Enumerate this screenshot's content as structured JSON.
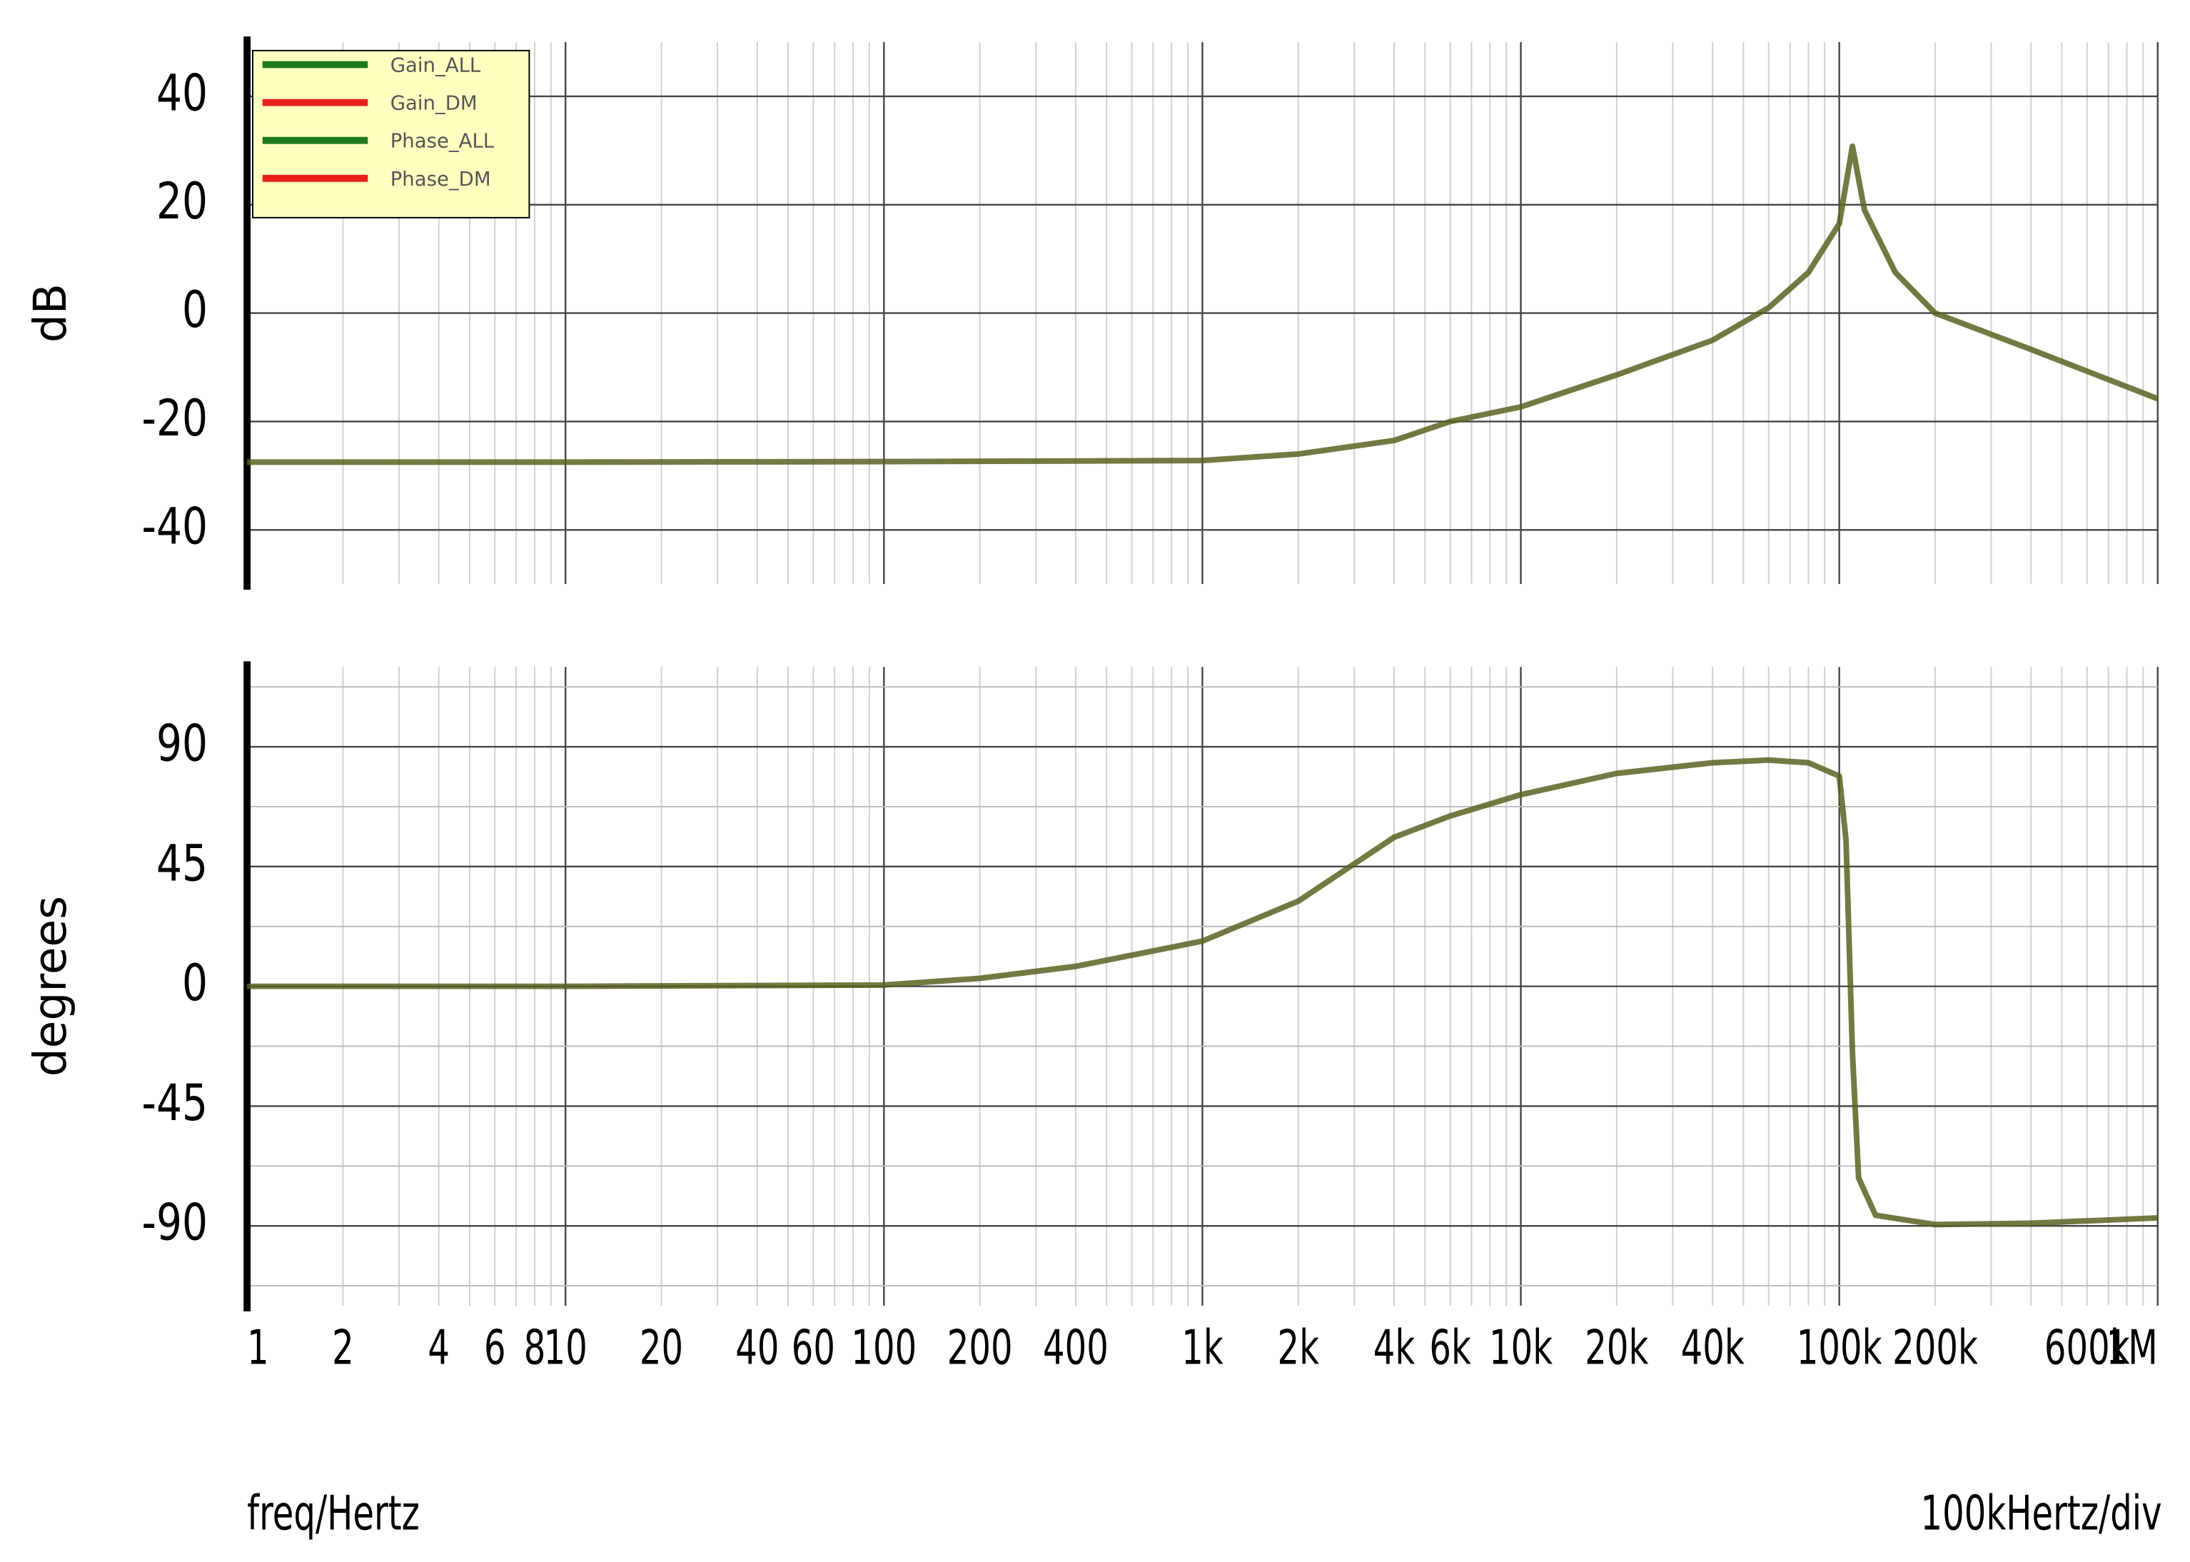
{
  "chart_data": [
    {
      "type": "line",
      "y_label": "dB",
      "log_x": true,
      "grid": true,
      "xlim": [
        1,
        1000000
      ],
      "ylim": [
        -50,
        50
      ],
      "yticks": [
        -40,
        -20,
        0,
        20,
        40
      ],
      "xgrid": [
        1,
        2,
        3,
        4,
        5,
        6,
        7,
        8,
        9,
        10,
        20,
        30,
        40,
        50,
        60,
        70,
        80,
        90,
        100,
        200,
        300,
        400,
        500,
        600,
        700,
        800,
        900,
        1000,
        2000,
        3000,
        4000,
        5000,
        6000,
        7000,
        8000,
        9000,
        10000,
        20000,
        30000,
        40000,
        50000,
        60000,
        70000,
        80000,
        90000,
        100000,
        200000,
        300000,
        400000,
        500000,
        600000,
        700000,
        800000,
        900000,
        1000000
      ],
      "x": [
        1,
        10,
        100,
        1000,
        2000,
        4000,
        6000,
        10000,
        20000,
        40000,
        60000,
        80000,
        100000,
        110000,
        120000,
        150000,
        200000,
        400000,
        1000000
      ],
      "series": [
        {
          "name": "Gain_DM",
          "color": "#e8201c",
          "values": [
            -27.5,
            -27.5,
            -27.4,
            -27.2,
            -26,
            -23.5,
            -20,
            -17.3,
            -11.4,
            -5,
            1,
            7.5,
            16.5,
            30.8,
            19,
            7.5,
            0,
            -6.7,
            -15.8
          ]
        },
        {
          "name": "Gain_ALL",
          "color": "#1f7a1f",
          "values": [
            -27.5,
            -27.5,
            -27.4,
            -27.2,
            -26,
            -23.5,
            -20,
            -17.3,
            -11.4,
            -5,
            1,
            7.5,
            16.5,
            30.8,
            19,
            7.5,
            0,
            -6.7,
            -15.8
          ]
        }
      ]
    },
    {
      "type": "line",
      "y_label": "degrees",
      "log_x": true,
      "grid": true,
      "xlim": [
        1,
        1000000
      ],
      "ylim": [
        -120,
        120
      ],
      "yticks": [
        -90,
        -45,
        0,
        45,
        90
      ],
      "minor_yticks": [
        -112.5,
        -67.5,
        -22.5,
        22.5,
        67.5,
        112.5
      ],
      "xgrid": [
        1,
        2,
        3,
        4,
        5,
        6,
        7,
        8,
        9,
        10,
        20,
        30,
        40,
        50,
        60,
        70,
        80,
        90,
        100,
        200,
        300,
        400,
        500,
        600,
        700,
        800,
        900,
        1000,
        2000,
        3000,
        4000,
        5000,
        6000,
        7000,
        8000,
        9000,
        10000,
        20000,
        30000,
        40000,
        50000,
        60000,
        70000,
        80000,
        90000,
        100000,
        200000,
        300000,
        400000,
        500000,
        600000,
        700000,
        800000,
        900000,
        1000000
      ],
      "xticks": [
        1,
        2,
        4,
        6,
        8,
        10,
        20,
        40,
        60,
        100,
        200,
        400,
        {
          "value": 1000,
          "label": "1k"
        },
        {
          "value": 2000,
          "label": "2k"
        },
        {
          "value": 4000,
          "label": "4k"
        },
        {
          "value": 6000,
          "label": "6k"
        },
        {
          "value": 10000,
          "label": "10k"
        },
        {
          "value": 20000,
          "label": "20k"
        },
        {
          "value": 40000,
          "label": "40k"
        },
        {
          "value": 100000,
          "label": "100k"
        },
        {
          "value": 200000,
          "label": "200k"
        },
        {
          "value": 600000,
          "label": "600k"
        },
        {
          "value": 1000000,
          "label": "1M"
        }
      ],
      "x_label": "freq/Hertz",
      "x_note": "100kHertz/div",
      "x": [
        1,
        10,
        100,
        200,
        400,
        1000,
        2000,
        4000,
        6000,
        10000,
        20000,
        40000,
        60000,
        80000,
        100000,
        105000,
        110000,
        115000,
        130000,
        200000,
        400000,
        1000000
      ],
      "series": [
        {
          "name": "Phase_DM",
          "color": "#e8201c",
          "values": [
            0,
            0,
            0.5,
            3,
            7.5,
            17,
            32,
            56,
            64,
            72,
            80,
            84,
            85,
            84,
            79,
            55,
            -25,
            -72,
            -86,
            -89.5,
            -89,
            -87
          ]
        },
        {
          "name": "Phase_ALL",
          "color": "#1f7a1f",
          "values": [
            0,
            0,
            0.5,
            3,
            7.5,
            17,
            32,
            56,
            64,
            72,
            80,
            84,
            85,
            84,
            79,
            55,
            -25,
            -72,
            -86,
            -89.5,
            -89,
            -87
          ]
        }
      ]
    }
  ]
}
